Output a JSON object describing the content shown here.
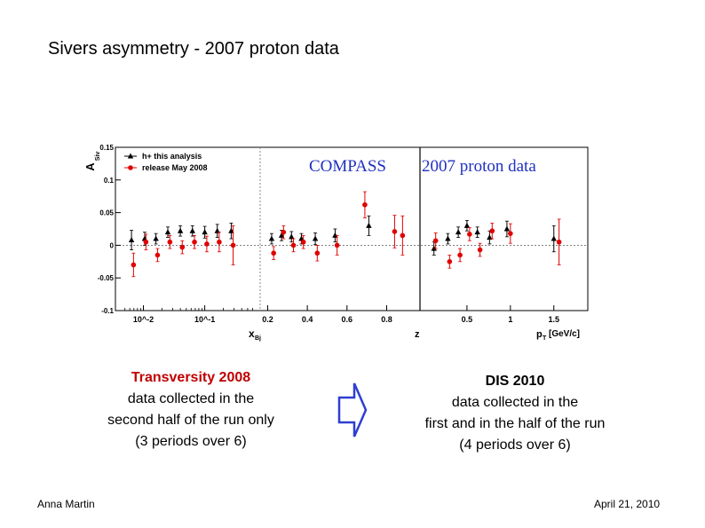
{
  "slide": {
    "title": "Sivers asymmetry - 2007 proton data",
    "footer_left": "Anna Martin",
    "footer_right": "April 21, 2010"
  },
  "left_caption": {
    "heading": "Transversity 2008",
    "lines": [
      "data collected in the",
      "second half of the run only",
      "(3 periods over 6)"
    ]
  },
  "right_caption": {
    "heading": "DIS 2010",
    "lines": [
      "data collected in the",
      "first and in the half of the run",
      "(4 periods over 6)"
    ]
  },
  "chart_data": {
    "type": "scatter",
    "ylabel": "A_Siv",
    "ylim": [
      -0.1,
      0.15
    ],
    "yticks": [
      -0.1,
      -0.05,
      0,
      0.05,
      0.1,
      0.15
    ],
    "ytick_labels": [
      "-0.1",
      "-0.05",
      "0",
      "0.05",
      "0.1",
      "0.15"
    ],
    "banner_left": "COMPASS",
    "banner_right": "2007 proton data",
    "colors": {
      "series_black": "#000000",
      "series_red": "#e00000",
      "banner": "#2030c0"
    },
    "legend": [
      {
        "name": "h+ this analysis",
        "marker": "triangle",
        "color": "#000000"
      },
      {
        "name": "release May 2008",
        "marker": "circle",
        "color": "#e00000"
      }
    ],
    "panels": [
      {
        "variable": "x_Bj",
        "xlabel": "x_Bj",
        "scale": "log",
        "xlim": [
          0.004,
          0.7
        ],
        "xticks": [
          0.01,
          0.1
        ],
        "xtick_labels": [
          "10^-2",
          "10^-1"
        ],
        "series": [
          {
            "name": "h+ this analysis",
            "x": [
              0.0064,
              0.0105,
              0.016,
              0.025,
              0.04,
              0.063,
              0.1,
              0.16,
              0.27
            ],
            "y": [
              0.008,
              0.01,
              0.01,
              0.02,
              0.022,
              0.022,
              0.02,
              0.022,
              0.022
            ],
            "err": [
              0.015,
              0.01,
              0.008,
              0.008,
              0.008,
              0.008,
              0.009,
              0.01,
              0.012
            ]
          },
          {
            "name": "release May 2008",
            "x": [
              0.0069,
              0.011,
              0.017,
              0.027,
              0.043,
              0.068,
              0.108,
              0.172,
              0.29
            ],
            "y": [
              -0.03,
              0.005,
              -0.015,
              0.005,
              -0.003,
              0.005,
              0.002,
              0.005,
              0.0
            ],
            "err": [
              0.018,
              0.012,
              0.01,
              0.01,
              0.01,
              0.01,
              0.012,
              0.015,
              0.03
            ]
          }
        ]
      },
      {
        "variable": "z",
        "xlabel": "z",
        "scale": "linear",
        "xlim": [
          0.18,
          0.95
        ],
        "xticks": [
          0.2,
          0.4,
          0.6,
          0.8
        ],
        "xtick_labels": [
          "0.2",
          "0.4",
          "0.6",
          "0.8"
        ],
        "series": [
          {
            "name": "h+ this analysis",
            "x": [
              0.22,
              0.27,
              0.32,
              0.37,
              0.44,
              0.54,
              0.71
            ],
            "y": [
              0.01,
              0.015,
              0.013,
              0.01,
              0.01,
              0.015,
              0.03
            ],
            "err": [
              0.008,
              0.008,
              0.008,
              0.008,
              0.009,
              0.01,
              0.015
            ]
          },
          {
            "name": "release May 2008",
            "x": [
              0.23,
              0.28,
              0.33,
              0.38,
              0.45,
              0.55,
              0.69,
              0.84,
              0.88
            ],
            "y": [
              -0.012,
              0.02,
              0.0,
              0.005,
              -0.012,
              0.0,
              0.062,
              0.021,
              0.015
            ],
            "err": [
              0.01,
              0.01,
              0.01,
              0.01,
              0.012,
              0.015,
              0.02,
              0.025,
              0.03
            ]
          }
        ]
      },
      {
        "variable": "p_T",
        "xlabel": "p_T [GeV/c]",
        "scale": "linear",
        "xlim": [
          0.0,
          1.85
        ],
        "xticks": [
          0.5,
          1.0,
          1.5
        ],
        "xtick_labels": [
          "0.5",
          "1",
          "1.5"
        ],
        "series": [
          {
            "name": "h+ this analysis",
            "x": [
              0.12,
              0.28,
              0.4,
              0.5,
              0.62,
              0.76,
              0.96,
              1.5
            ],
            "y": [
              -0.005,
              0.01,
              0.02,
              0.03,
              0.02,
              0.012,
              0.025,
              0.01
            ],
            "err": [
              0.01,
              0.008,
              0.008,
              0.008,
              0.008,
              0.01,
              0.012,
              0.02
            ]
          },
          {
            "name": "release May 2008",
            "x": [
              0.14,
              0.3,
              0.42,
              0.53,
              0.65,
              0.79,
              1.0,
              1.56
            ],
            "y": [
              0.007,
              -0.025,
              -0.015,
              0.017,
              -0.007,
              0.022,
              0.018,
              0.005
            ],
            "err": [
              0.012,
              0.01,
              0.01,
              0.01,
              0.01,
              0.012,
              0.015,
              0.035
            ]
          }
        ]
      }
    ]
  }
}
